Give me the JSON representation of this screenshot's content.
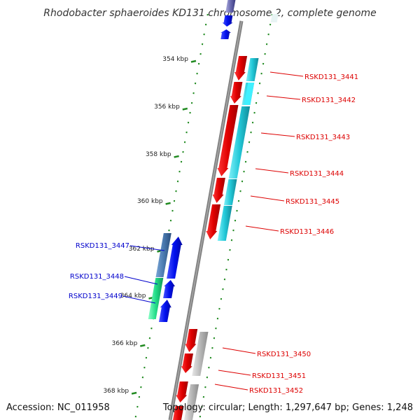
{
  "title": "Rhodobacter sphaeroides KD131 chromosome 2, complete genome",
  "footer": {
    "accession": "Accession: NC_011958",
    "summary": "Topology: circular; Length: 1,297,647 bp; Genes: 1,248"
  },
  "ticks": [
    "354 kbp",
    "356 kbp",
    "358 kbp",
    "360 kbp",
    "362 kbp",
    "364 kbp",
    "366 kbp",
    "368 kbp"
  ],
  "genes_right": [
    {
      "label": "RSKD131_3441",
      "color": "#dd0000"
    },
    {
      "label": "RSKD131_3442",
      "color": "#dd0000"
    },
    {
      "label": "RSKD131_3443",
      "color": "#dd0000"
    },
    {
      "label": "RSKD131_3444",
      "color": "#dd0000"
    },
    {
      "label": "RSKD131_3445",
      "color": "#dd0000"
    },
    {
      "label": "RSKD131_3446",
      "color": "#dd0000"
    },
    {
      "label": "RSKD131_3450",
      "color": "#dd0000"
    },
    {
      "label": "RSKD131_3451",
      "color": "#dd0000"
    },
    {
      "label": "RSKD131_3452",
      "color": "#dd0000"
    }
  ],
  "genes_left": [
    {
      "label": "RSKD131_3447",
      "color": "#0000cc"
    },
    {
      "label": "RSKD131_3448",
      "color": "#0000cc"
    },
    {
      "label": "RSKD131_3449",
      "color": "#0000cc"
    }
  ],
  "colors": {
    "backbone": "#808080",
    "tick": "#228b22",
    "forward_cds": "#e00000",
    "forward_cog_cyan": "#22c8d8",
    "reverse_cds": "#0010ee",
    "reverse_cog_steel": "#4a7ab0",
    "reverse_cog_green": "#22dd88",
    "cog_gray": "#b8b8b8"
  },
  "icons": [
    "arrow-gene-icon"
  ]
}
